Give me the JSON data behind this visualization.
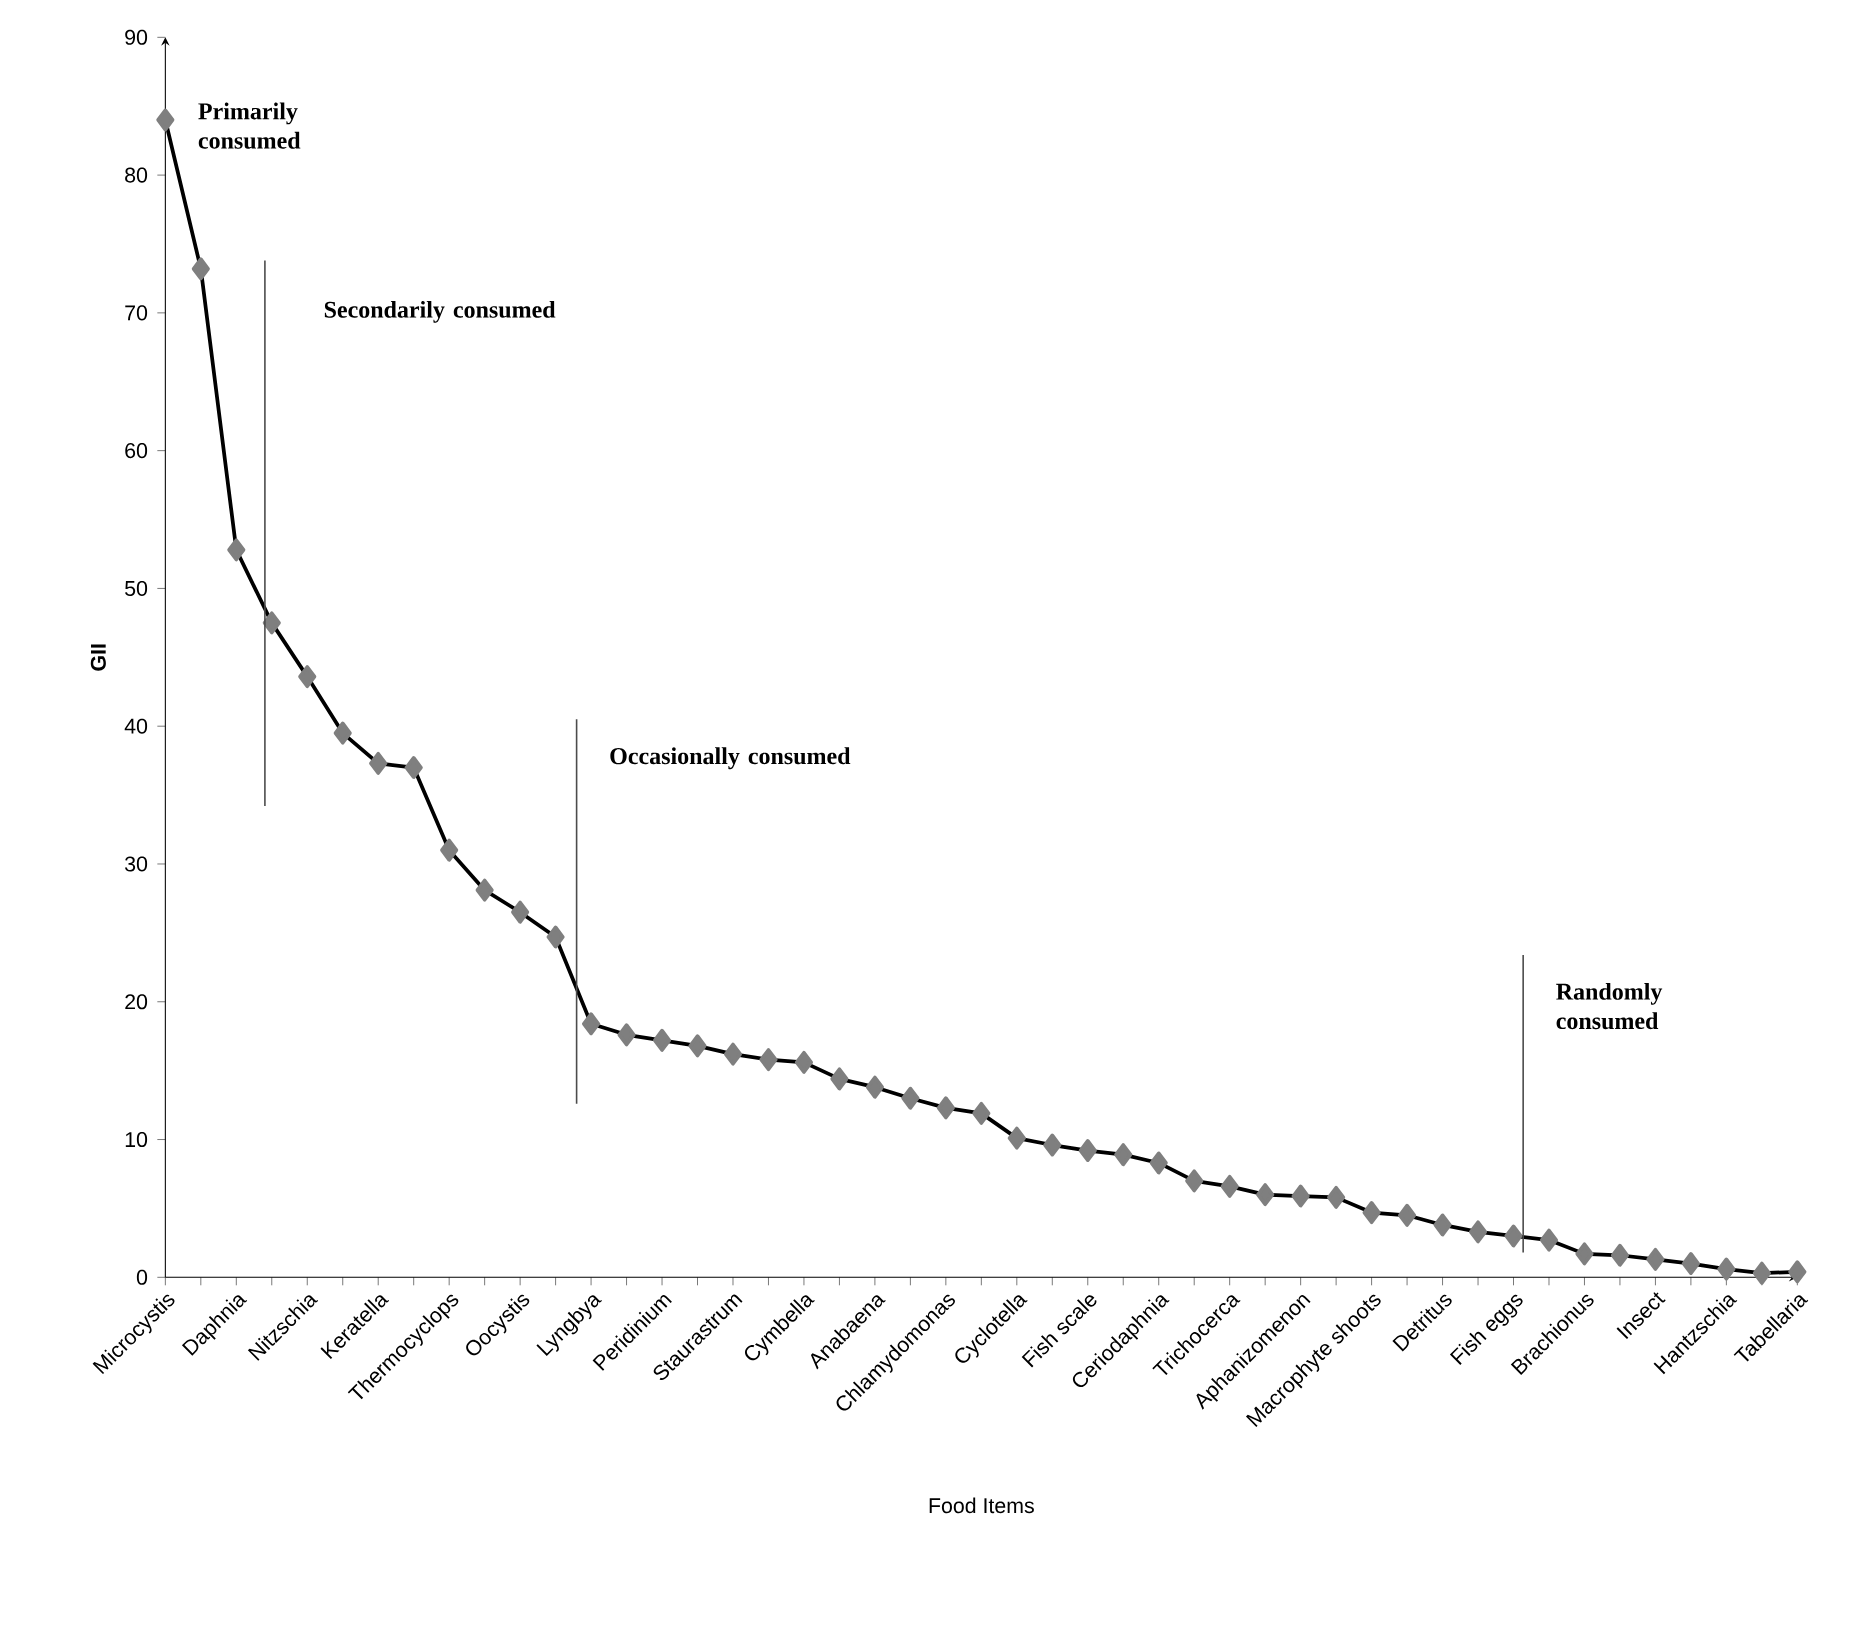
{
  "chart_data": {
    "type": "line",
    "xlabel": "Food Items",
    "ylabel": "GII",
    "categories": [
      "Microcystis",
      null,
      "Daphnia",
      null,
      "Nitzschia",
      null,
      "Keratella",
      null,
      "Thermocyclops",
      null,
      "Oocystis",
      null,
      "Lyngbya",
      null,
      "Peridinium",
      null,
      "Staurastrum",
      null,
      "Cymbella",
      null,
      "Anabaena",
      null,
      "Chlamydomonas",
      null,
      "Cyclotella",
      null,
      "Fish scale",
      null,
      "Ceriodaphnia",
      null,
      "Trichocerca",
      null,
      "Aphanizomenon",
      null,
      "Macrophyte shoots",
      null,
      "Detritus",
      null,
      "Fish eggs",
      null,
      "Brachionus",
      null,
      "Insect",
      null,
      "Hantzschia",
      null,
      "Tabellaria"
    ],
    "values": [
      84,
      73.2,
      52.8,
      47.5,
      43.6,
      39.5,
      37.3,
      37,
      31,
      28.1,
      26.5,
      24.7,
      18.4,
      17.6,
      17.2,
      16.8,
      16.2,
      15.8,
      15.6,
      14.4,
      13.8,
      13.0,
      12.3,
      11.9,
      10.1,
      9.6,
      9.2,
      8.9,
      8.3,
      7.0,
      6.6,
      6.0,
      5.9,
      5.8,
      4.7,
      4.5,
      3.8,
      3.3,
      3.0,
      2.7,
      1.7,
      1.6,
      1.3,
      1.0,
      0.6,
      0.3,
      0.4
    ],
    "color": "#7f7f7f",
    "marker": "diamond",
    "line_style": "solid",
    "ylim": [
      0,
      90
    ],
    "yticks": [
      0,
      10,
      20,
      30,
      40,
      50,
      60,
      70,
      80,
      90
    ],
    "annotations": [
      "Primarily consumed",
      "Secondarily consumed",
      "Occasionally consumed",
      "Randomly consumed"
    ]
  }
}
